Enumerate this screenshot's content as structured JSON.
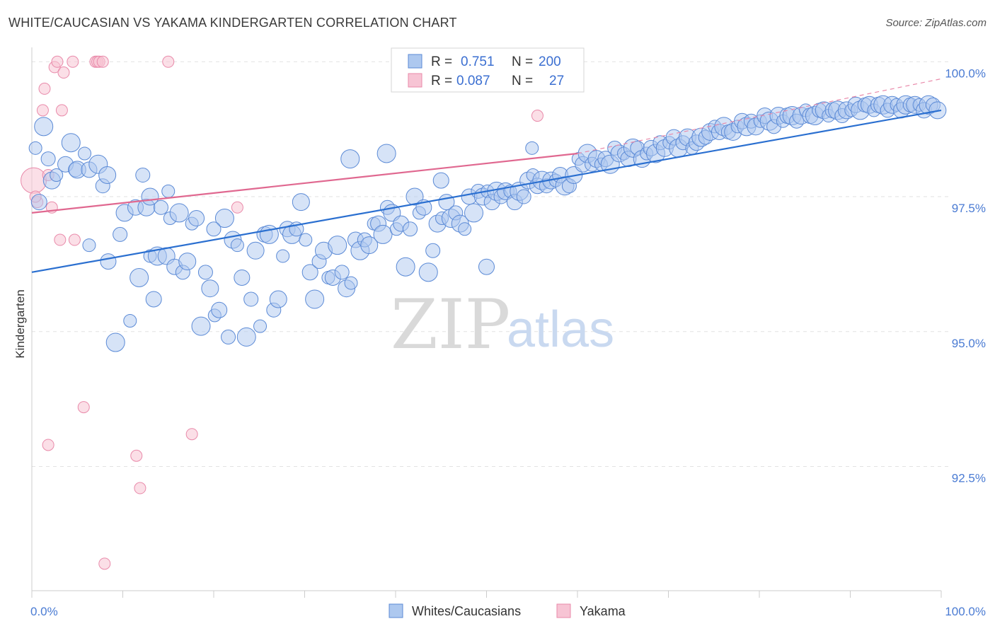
{
  "title": "WHITE/CAUCASIAN VS YAKAMA KINDERGARTEN CORRELATION CHART",
  "source": "Source: ZipAtlas.com",
  "watermark": {
    "zip": "ZIP",
    "atlas": "atlas"
  },
  "colors": {
    "blue_fill": "#adc8ef",
    "blue_stroke": "#5b8ad6",
    "blue_line": "#2a6fd0",
    "pink_fill": "#f7c4d4",
    "pink_stroke": "#e98aaa",
    "pink_line": "#e06890",
    "grid": "#e2e2e2",
    "axis_text": "#4a7bd3"
  },
  "legend": {
    "rows": [
      {
        "r_label": "R =",
        "r_value": "0.751",
        "n_label": "N =",
        "n_value": "200"
      },
      {
        "r_label": "R =",
        "r_value": "0.087",
        "n_label": "N =",
        "n_value": "27"
      }
    ]
  },
  "bottom_legend": [
    "Whites/Caucasians",
    "Yakama"
  ],
  "chart_data": {
    "type": "scatter",
    "title": "WHITE/CAUCASIAN VS YAKAMA KINDERGARTEN CORRELATION CHART",
    "xlabel": "",
    "ylabel": "Kindergarten",
    "xlim": [
      0,
      100
    ],
    "ylim": [
      90.2,
      100.2
    ],
    "x_tick_labels": [
      "0.0%",
      "100.0%"
    ],
    "y_ticks": [
      92.5,
      95.0,
      97.5,
      100.0
    ],
    "y_tick_labels": [
      "92.5%",
      "95.0%",
      "97.5%",
      "100.0%"
    ],
    "grid": true,
    "legend_placement": "top-center",
    "series": [
      {
        "name": "Whites/Caucasians",
        "r": 0.751,
        "n": 200,
        "trend": {
          "x": [
            0,
            100
          ],
          "y": [
            96.1,
            99.1
          ]
        },
        "points": [
          [
            0.4,
            98.4
          ],
          [
            0.8,
            97.4
          ],
          [
            1.3,
            98.8
          ],
          [
            1.8,
            98.2
          ],
          [
            2.2,
            97.8
          ],
          [
            2.7,
            97.9
          ],
          [
            3.7,
            98.1
          ],
          [
            4.3,
            98.5
          ],
          [
            4.8,
            98.0
          ],
          [
            5.0,
            98.0
          ],
          [
            5.8,
            98.3
          ],
          [
            6.3,
            98.0
          ],
          [
            7.3,
            98.1
          ],
          [
            7.8,
            97.7
          ],
          [
            8.3,
            97.9
          ],
          [
            6.3,
            96.6
          ],
          [
            8.4,
            96.3
          ],
          [
            9.2,
            94.8
          ],
          [
            9.7,
            96.8
          ],
          [
            10.2,
            97.2
          ],
          [
            10.8,
            95.2
          ],
          [
            11.4,
            97.3
          ],
          [
            11.8,
            96.0
          ],
          [
            12.2,
            97.9
          ],
          [
            12.6,
            97.3
          ],
          [
            13.0,
            96.4
          ],
          [
            13.4,
            95.6
          ],
          [
            13.8,
            96.4
          ],
          [
            14.2,
            97.3
          ],
          [
            14.8,
            96.4
          ],
          [
            15.2,
            97.1
          ],
          [
            15.7,
            96.2
          ],
          [
            16.2,
            97.2
          ],
          [
            16.6,
            96.1
          ],
          [
            17.1,
            96.3
          ],
          [
            17.6,
            97.0
          ],
          [
            18.1,
            97.1
          ],
          [
            18.6,
            95.1
          ],
          [
            19.1,
            96.1
          ],
          [
            19.6,
            95.8
          ],
          [
            20.1,
            95.3
          ],
          [
            20.6,
            95.4
          ],
          [
            21.2,
            97.1
          ],
          [
            21.6,
            94.9
          ],
          [
            22.1,
            96.7
          ],
          [
            22.6,
            96.6
          ],
          [
            23.1,
            96.0
          ],
          [
            23.6,
            94.9
          ],
          [
            24.1,
            95.6
          ],
          [
            24.6,
            96.5
          ],
          [
            25.1,
            95.1
          ],
          [
            25.6,
            96.8
          ],
          [
            26.1,
            96.8
          ],
          [
            26.6,
            95.4
          ],
          [
            27.1,
            95.6
          ],
          [
            27.6,
            96.4
          ],
          [
            28.1,
            96.9
          ],
          [
            28.6,
            96.8
          ],
          [
            29.1,
            96.9
          ],
          [
            29.6,
            97.4
          ],
          [
            30.1,
            96.7
          ],
          [
            30.6,
            96.1
          ],
          [
            31.1,
            95.6
          ],
          [
            31.6,
            96.3
          ],
          [
            32.1,
            96.5
          ],
          [
            32.6,
            96.0
          ],
          [
            33.1,
            96.0
          ],
          [
            33.6,
            96.6
          ],
          [
            34.1,
            96.1
          ],
          [
            34.6,
            95.8
          ],
          [
            35.1,
            95.9
          ],
          [
            35.6,
            96.7
          ],
          [
            36.1,
            96.5
          ],
          [
            36.6,
            96.7
          ],
          [
            37.1,
            96.6
          ],
          [
            37.6,
            97.0
          ],
          [
            38.1,
            97.0
          ],
          [
            38.6,
            96.8
          ],
          [
            39.1,
            97.3
          ],
          [
            39.6,
            97.2
          ],
          [
            40.1,
            96.9
          ],
          [
            40.6,
            97.0
          ],
          [
            41.1,
            96.2
          ],
          [
            41.6,
            96.9
          ],
          [
            42.1,
            97.5
          ],
          [
            42.6,
            97.2
          ],
          [
            43.1,
            97.3
          ],
          [
            43.6,
            96.1
          ],
          [
            44.1,
            96.5
          ],
          [
            44.6,
            97.0
          ],
          [
            45.1,
            97.1
          ],
          [
            45.6,
            97.4
          ],
          [
            46.1,
            97.1
          ],
          [
            46.6,
            97.2
          ],
          [
            47.1,
            97.0
          ],
          [
            47.6,
            96.9
          ],
          [
            48.1,
            97.5
          ],
          [
            48.6,
            97.2
          ],
          [
            49.1,
            97.6
          ],
          [
            49.6,
            97.5
          ],
          [
            50.1,
            97.6
          ],
          [
            50.6,
            97.4
          ],
          [
            51.1,
            97.6
          ],
          [
            51.6,
            97.5
          ],
          [
            52.1,
            97.6
          ],
          [
            52.6,
            97.6
          ],
          [
            53.1,
            97.4
          ],
          [
            53.6,
            97.6
          ],
          [
            54.1,
            97.5
          ],
          [
            54.6,
            97.8
          ],
          [
            55.1,
            97.9
          ],
          [
            55.6,
            97.7
          ],
          [
            56.1,
            97.8
          ],
          [
            56.6,
            97.7
          ],
          [
            57.1,
            97.8
          ],
          [
            57.6,
            97.8
          ],
          [
            58.1,
            97.9
          ],
          [
            58.6,
            97.7
          ],
          [
            59.1,
            97.7
          ],
          [
            59.6,
            97.9
          ],
          [
            60.1,
            98.2
          ],
          [
            60.6,
            98.1
          ],
          [
            61.1,
            98.3
          ],
          [
            61.6,
            98.1
          ],
          [
            62.1,
            98.2
          ],
          [
            62.6,
            98.1
          ],
          [
            63.1,
            98.2
          ],
          [
            63.6,
            98.1
          ],
          [
            64.1,
            98.4
          ],
          [
            64.6,
            98.3
          ],
          [
            65.1,
            98.3
          ],
          [
            65.6,
            98.2
          ],
          [
            66.1,
            98.4
          ],
          [
            66.6,
            98.4
          ],
          [
            67.1,
            98.2
          ],
          [
            67.6,
            98.3
          ],
          [
            68.1,
            98.4
          ],
          [
            68.6,
            98.3
          ],
          [
            69.1,
            98.5
          ],
          [
            69.6,
            98.4
          ],
          [
            70.1,
            98.5
          ],
          [
            70.6,
            98.6
          ],
          [
            71.1,
            98.4
          ],
          [
            71.6,
            98.5
          ],
          [
            72.1,
            98.6
          ],
          [
            72.6,
            98.4
          ],
          [
            73.1,
            98.5
          ],
          [
            73.6,
            98.6
          ],
          [
            74.1,
            98.6
          ],
          [
            74.6,
            98.7
          ],
          [
            75.1,
            98.8
          ],
          [
            75.6,
            98.7
          ],
          [
            76.1,
            98.8
          ],
          [
            76.6,
            98.7
          ],
          [
            77.1,
            98.7
          ],
          [
            77.6,
            98.8
          ],
          [
            78.1,
            98.9
          ],
          [
            78.6,
            98.8
          ],
          [
            79.1,
            98.9
          ],
          [
            79.6,
            98.8
          ],
          [
            80.1,
            98.9
          ],
          [
            80.6,
            99.0
          ],
          [
            81.1,
            98.9
          ],
          [
            81.6,
            98.8
          ],
          [
            82.1,
            99.0
          ],
          [
            82.6,
            98.9
          ],
          [
            83.1,
            99.0
          ],
          [
            83.6,
            99.0
          ],
          [
            84.1,
            98.9
          ],
          [
            84.6,
            99.0
          ],
          [
            85.1,
            99.1
          ],
          [
            85.6,
            99.0
          ],
          [
            86.1,
            99.0
          ],
          [
            86.6,
            99.1
          ],
          [
            87.1,
            99.1
          ],
          [
            87.6,
            99.0
          ],
          [
            88.1,
            99.1
          ],
          [
            88.6,
            99.1
          ],
          [
            89.1,
            99.0
          ],
          [
            89.6,
            99.1
          ],
          [
            90.1,
            99.1
          ],
          [
            90.6,
            99.2
          ],
          [
            91.1,
            99.1
          ],
          [
            91.6,
            99.2
          ],
          [
            92.1,
            99.2
          ],
          [
            92.6,
            99.1
          ],
          [
            93.1,
            99.2
          ],
          [
            93.6,
            99.2
          ],
          [
            94.1,
            99.1
          ],
          [
            94.6,
            99.2
          ],
          [
            95.1,
            99.2
          ],
          [
            95.6,
            99.1
          ],
          [
            96.1,
            99.2
          ],
          [
            96.6,
            99.2
          ],
          [
            97.1,
            99.2
          ],
          [
            97.6,
            99.2
          ],
          [
            98.1,
            99.1
          ],
          [
            98.6,
            99.2
          ],
          [
            99.1,
            99.2
          ],
          [
            99.6,
            99.1
          ],
          [
            55.0,
            98.4
          ],
          [
            50.0,
            96.2
          ],
          [
            39.0,
            98.3
          ],
          [
            20.0,
            96.9
          ],
          [
            13.0,
            97.5
          ],
          [
            15.0,
            97.6
          ],
          [
            45.0,
            97.8
          ],
          [
            35.0,
            98.2
          ]
        ]
      },
      {
        "name": "Yakama",
        "r": 0.087,
        "n": 27,
        "trend": {
          "x": [
            0,
            60
          ],
          "y": [
            97.2,
            98.3
          ]
        },
        "points": [
          [
            0.2,
            97.8
          ],
          [
            0.6,
            97.4
          ],
          [
            1.2,
            99.1
          ],
          [
            1.4,
            99.5
          ],
          [
            1.8,
            97.9
          ],
          [
            2.2,
            97.3
          ],
          [
            2.5,
            99.9
          ],
          [
            2.8,
            100.0
          ],
          [
            3.1,
            96.7
          ],
          [
            3.3,
            99.1
          ],
          [
            3.5,
            99.8
          ],
          [
            4.5,
            100.0
          ],
          [
            4.7,
            96.7
          ],
          [
            5.7,
            93.6
          ],
          [
            7.0,
            100.0
          ],
          [
            7.2,
            100.0
          ],
          [
            7.4,
            100.0
          ],
          [
            7.8,
            100.0
          ],
          [
            8.0,
            90.7
          ],
          [
            11.5,
            92.7
          ],
          [
            11.9,
            92.1
          ],
          [
            1.8,
            92.9
          ],
          [
            15.0,
            100.0
          ],
          [
            17.6,
            93.1
          ],
          [
            22.6,
            97.3
          ],
          [
            55.6,
            99.0
          ],
          [
            0.4,
            97.5
          ]
        ]
      }
    ]
  }
}
